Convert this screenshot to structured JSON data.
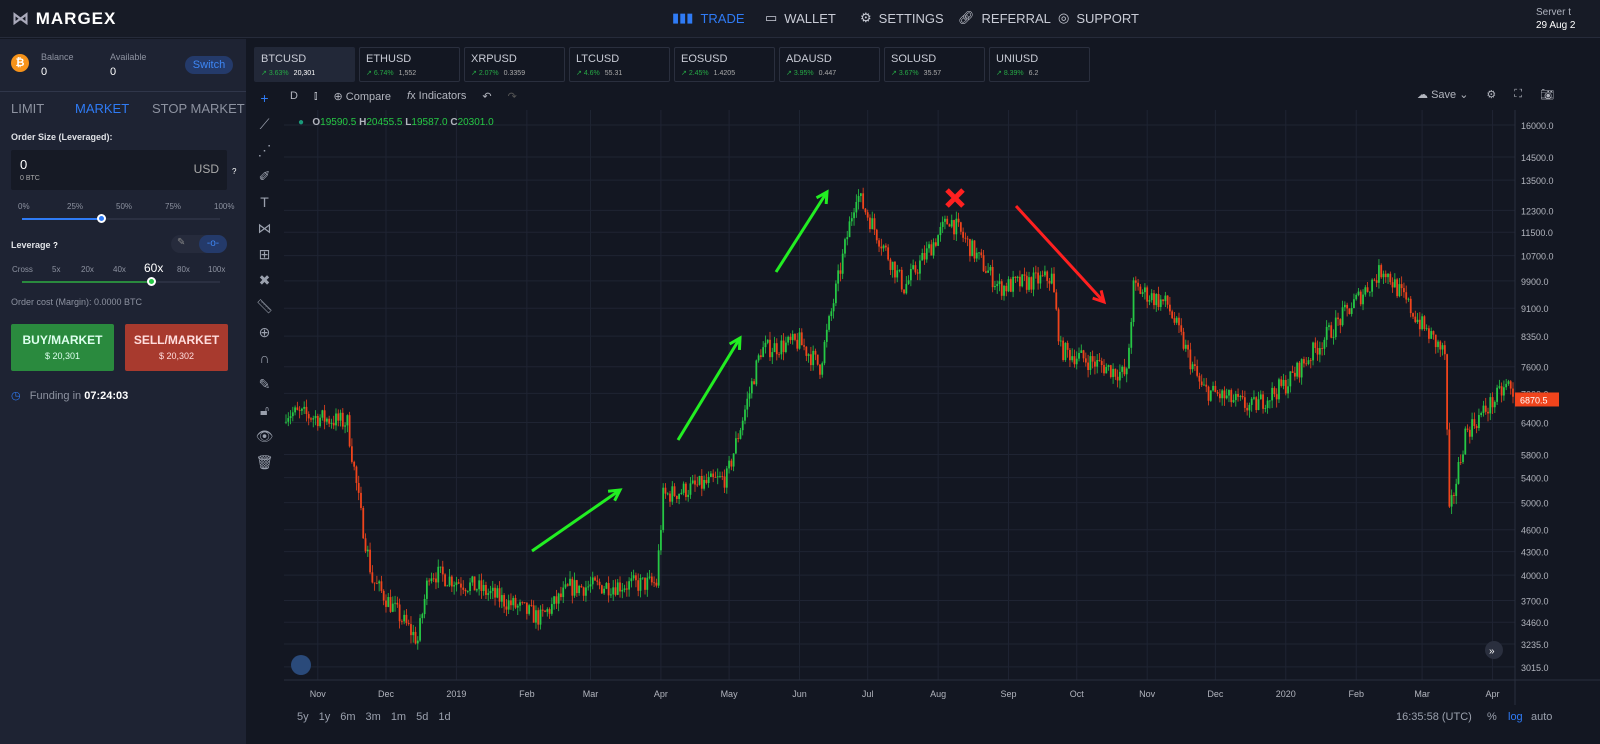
{
  "nav": {
    "logo": "MARGEX",
    "items": [
      {
        "label": "TRADE",
        "icon": "bar-chart-icon",
        "active": true
      },
      {
        "label": "WALLET",
        "icon": "wallet-icon"
      },
      {
        "label": "SETTINGS",
        "icon": "gear-icon"
      },
      {
        "label": "REFERRAL",
        "icon": "link-icon"
      },
      {
        "label": "SUPPORT",
        "icon": "lifebuoy-icon"
      }
    ],
    "server_label": "Server t",
    "server_date": "29 Aug 2"
  },
  "account": {
    "coin_icon": "bitcoin-icon",
    "balance_label": "Balance",
    "balance": "0",
    "available_label": "Available",
    "available": "0",
    "switch": "Switch"
  },
  "order_tabs": [
    "LIMIT",
    "MARKET",
    "STOP MARKET"
  ],
  "active_tab": "MARKET",
  "order": {
    "size_label": "Order Size (Leveraged):",
    "value": "0",
    "btc": "0 BTC",
    "currency": "USD",
    "help": "?",
    "size_pct_ticks": [
      "0%",
      "25%",
      "50%",
      "75%",
      "100%"
    ],
    "size_pct": 38,
    "leverage_label": "Leverage",
    "leverage_ticks": [
      "Cross",
      "5x",
      "20x",
      "40x",
      "60x",
      "80x",
      "100x"
    ],
    "leverage": "60x",
    "cost": "Order cost (Margin): 0.0000 BTC",
    "buy_label": "BUY/MARKET",
    "buy_price": "$ 20,301",
    "sell_label": "SELL/MARKET",
    "sell_price": "$ 20,302",
    "funding_label": "Funding in",
    "funding_time": "07:24:03"
  },
  "tickers": [
    {
      "sym": "BTCUSD",
      "chg": "3.63%",
      "px": "20,301"
    },
    {
      "sym": "ETHUSD",
      "chg": "6.74%",
      "px": "1,552"
    },
    {
      "sym": "XRPUSD",
      "chg": "2.07%",
      "px": "0.3359"
    },
    {
      "sym": "LTCUSD",
      "chg": "4.6%",
      "px": "55.31"
    },
    {
      "sym": "EOSUSD",
      "chg": "2.45%",
      "px": "1.4205"
    },
    {
      "sym": "ADAUSD",
      "chg": "3.95%",
      "px": "0.447"
    },
    {
      "sym": "SOLUSD",
      "chg": "3.67%",
      "px": "35.57"
    },
    {
      "sym": "UNIUSD",
      "chg": "8.39%",
      "px": "6.2"
    }
  ],
  "toolbar": {
    "interval": "D",
    "compare": "Compare",
    "indicators": "Indicators",
    "save": "Save"
  },
  "ohlc": {
    "o_label": "O",
    "o": "19590.5",
    "h_label": "H",
    "h": "20455.5",
    "l_label": "L",
    "l": "19587.0",
    "c_label": "C",
    "c": "20301.0"
  },
  "bottom": {
    "ranges": [
      "5y",
      "1y",
      "6m",
      "3m",
      "1m",
      "5d",
      "1d"
    ],
    "time": "16:35:58 (UTC)",
    "pct": "%",
    "log": "log",
    "auto": "auto"
  },
  "colors": {
    "up": "#26c845",
    "down": "#f0441c",
    "accent": "#2f7bf5",
    "buy": "#2a8a3e",
    "sell": "#a83a2e"
  },
  "chart_data": {
    "type": "candlestick",
    "scale": "log",
    "grid": true,
    "yticks": [
      16000,
      14500,
      13500,
      12300,
      11500,
      10700,
      9900,
      9100,
      8350,
      7600,
      7000,
      6400,
      5800,
      5400,
      5000,
      4600,
      4300,
      4000,
      3700,
      3460,
      3235,
      3015
    ],
    "xticks": [
      [
        "2018-11-01",
        "Nov"
      ],
      [
        "2018-12-01",
        "Dec"
      ],
      [
        "2019-01-01",
        "2019"
      ],
      [
        "2019-02-01",
        "Feb"
      ],
      [
        "2019-03-01",
        "Mar"
      ],
      [
        "2019-04-01",
        "Apr"
      ],
      [
        "2019-05-01",
        "May"
      ],
      [
        "2019-06-01",
        "Jun"
      ],
      [
        "2019-07-01",
        "Jul"
      ],
      [
        "2019-08-01",
        "Aug"
      ],
      [
        "2019-09-01",
        "Sep"
      ],
      [
        "2019-10-01",
        "Oct"
      ],
      [
        "2019-11-01",
        "Nov"
      ],
      [
        "2019-12-01",
        "Dec"
      ],
      [
        "2020-01-01",
        "2020"
      ],
      [
        "2020-02-01",
        "Feb"
      ],
      [
        "2020-03-01",
        "Mar"
      ],
      [
        "2020-04-01",
        "Apr"
      ]
    ],
    "xrange": [
      "2018-10-18",
      "2020-04-10"
    ],
    "approx_close": [
      [
        "2018-10-18",
        6610
      ],
      [
        "2018-11-14",
        6400
      ],
      [
        "2018-11-20",
        4800
      ],
      [
        "2018-11-25",
        3940
      ],
      [
        "2018-12-15",
        3270
      ],
      [
        "2018-12-20",
        4040
      ],
      [
        "2019-01-10",
        3850
      ],
      [
        "2019-02-07",
        3500
      ],
      [
        "2019-02-20",
        3850
      ],
      [
        "2019-03-30",
        3900
      ],
      [
        "2019-04-02",
        5100
      ],
      [
        "2019-04-30",
        5400
      ],
      [
        "2019-05-15",
        8000
      ],
      [
        "2019-06-01",
        8200
      ],
      [
        "2019-06-10",
        7600
      ],
      [
        "2019-06-26",
        13000
      ],
      [
        "2019-07-17",
        9700
      ],
      [
        "2019-08-06",
        12000
      ],
      [
        "2019-08-28",
        9700
      ],
      [
        "2019-09-20",
        10000
      ],
      [
        "2019-09-24",
        8000
      ],
      [
        "2019-10-23",
        7400
      ],
      [
        "2019-10-26",
        9700
      ],
      [
        "2019-11-10",
        9200
      ],
      [
        "2019-11-25",
        7100
      ],
      [
        "2019-12-17",
        6700
      ],
      [
        "2020-01-01",
        7200
      ],
      [
        "2020-02-13",
        10300
      ],
      [
        "2020-02-29",
        8700
      ],
      [
        "2020-03-11",
        7900
      ],
      [
        "2020-03-13",
        4800
      ],
      [
        "2020-03-20",
        6200
      ],
      [
        "2020-04-08",
        7200
      ],
      [
        "2020-04-10",
        6870.5
      ]
    ],
    "last_price": "6870.5"
  }
}
